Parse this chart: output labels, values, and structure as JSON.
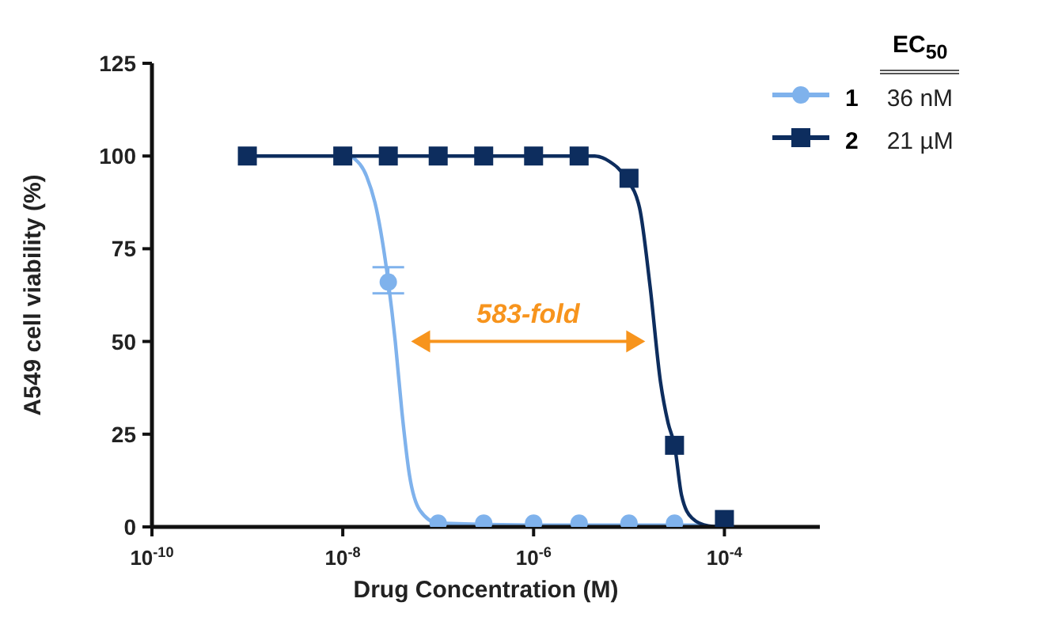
{
  "chart_data": {
    "type": "scatter",
    "xlabel": "Drug Concentration (M)",
    "ylabel": "A549 cell viability (%)",
    "legend_title": "EC$_{50}$",
    "log": "x",
    "xlim": [
      1e-10,
      0.001
    ],
    "xticks": [
      {
        "value": 1e-10,
        "label": "10$^{-10}$"
      },
      {
        "value": 1e-08,
        "label": "10$^{-8}$"
      },
      {
        "value": 1e-06,
        "label": "10$^{-6}$"
      },
      {
        "value": 0.0001,
        "label": "10$^{-4}$"
      }
    ],
    "ylim": [
      0,
      125
    ],
    "yticks": [
      0,
      25,
      50,
      75,
      100,
      125
    ],
    "legend": "top right",
    "annotations": [
      "583-fold",
      "36 nM",
      "21 µM"
    ],
    "series": [
      {
        "name": "1",
        "marker": "circle",
        "color": "#7fb2ec",
        "x": [
          3e-08,
          1e-07,
          3e-07,
          1e-06,
          3e-06,
          1e-05,
          3e-05
        ],
        "values": [
          66,
          1,
          1,
          1,
          1,
          1,
          1
        ],
        "errors": [
          [
            63,
            70
          ],
          null,
          null,
          null,
          null,
          null,
          null
        ]
      },
      {
        "name": "2",
        "marker": "square",
        "color": "#0d2d5e",
        "x": [
          1e-09,
          1e-08,
          3e-08,
          1e-07,
          3e-07,
          1e-06,
          3e-06,
          1e-05,
          3e-05,
          0.0001
        ],
        "values": [
          100,
          100,
          100,
          100,
          100,
          100,
          100,
          94,
          22,
          2
        ]
      },
      {
        "type": "line",
        "marker": "none",
        "color": "#7fb2ec",
        "x": [
          1.3e-08,
          1.78e-08,
          2.24e-08,
          3e-08,
          3.55e-08,
          4.17e-08,
          5e-08,
          6.46e-08,
          1e-07,
          1e-06,
          6e-05
        ],
        "values": [
          99.5,
          94.5,
          86,
          66,
          50,
          31,
          14,
          4.4,
          1,
          0.5,
          0.5
        ]
      },
      {
        "type": "line",
        "marker": "none",
        "color": "#0d2d5e",
        "x": [
          1e-09,
          1e-06,
          4.37e-06,
          6.17e-06,
          9.33e-06,
          1.29e-05,
          1.66e-05,
          2.14e-05,
          2.57e-05,
          3e-05,
          3.55e-05,
          4.57e-05,
          6.76e-05,
          0.0001
        ],
        "values": [
          100,
          100,
          100,
          98.6,
          94,
          86,
          65,
          39,
          28,
          22,
          8.6,
          2.4,
          0.3,
          0
        ]
      }
    ]
  }
}
